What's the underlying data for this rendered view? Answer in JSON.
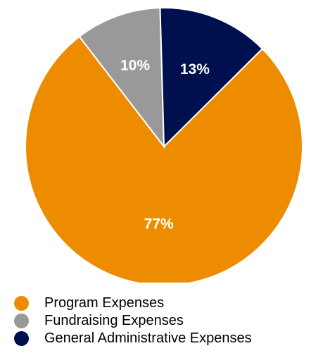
{
  "chart_data": {
    "type": "pie",
    "series": [
      {
        "name": "Program Expenses",
        "value": 77,
        "label": "77%",
        "color": "#EE8C00"
      },
      {
        "name": "Fundraising Expenses",
        "value": 10,
        "label": "10%",
        "color": "#999999"
      },
      {
        "name": "General Administrative Expenses",
        "value": 13,
        "label": "13%",
        "color": "#00104F"
      }
    ],
    "legend_position": "bottom-left",
    "legend_marker": "circle"
  }
}
